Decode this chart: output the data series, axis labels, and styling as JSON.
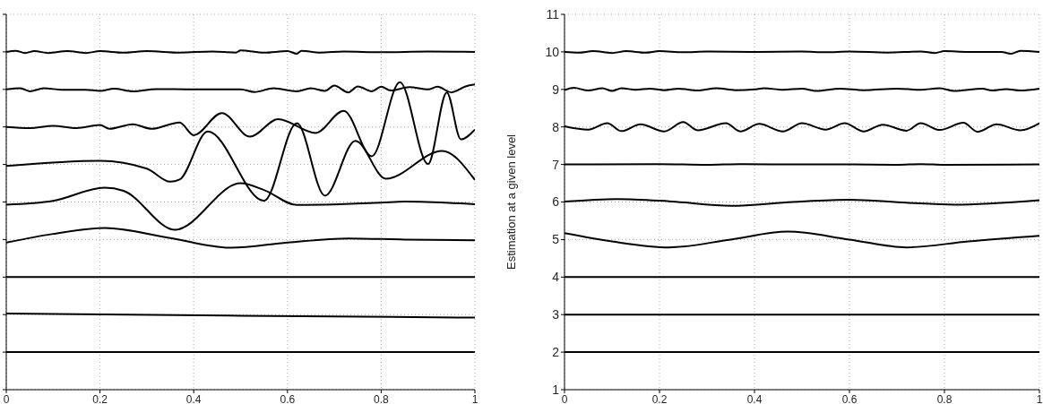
{
  "chart_data": [
    {
      "type": "line",
      "xlim": [
        0,
        1
      ],
      "xticks": [
        0,
        0.2,
        0.4,
        0.6,
        0.8,
        1
      ],
      "ylim": [
        1,
        11
      ],
      "yticks": [
        1,
        2,
        3,
        4,
        5,
        6,
        7,
        8,
        9,
        10,
        11
      ],
      "tick_labels": "x",
      "grid": true,
      "marker": "none",
      "line_style": "solid",
      "series": [
        {
          "color": "#000000",
          "x": [
            0,
            1
          ],
          "values": [
            2,
            2
          ]
        },
        {
          "color": "#000000",
          "x": [
            0,
            0.5,
            1
          ],
          "values": [
            3.03,
            2.97,
            2.92
          ]
        },
        {
          "color": "#000000",
          "x": [
            0,
            1
          ],
          "values": [
            4,
            4
          ]
        },
        {
          "color": "#000000",
          "x": [
            0,
            0.1,
            0.21,
            0.35,
            0.48,
            0.6,
            0.73,
            0.85,
            1
          ],
          "values": [
            4.92,
            5.15,
            5.31,
            5.04,
            4.78,
            4.92,
            5.03,
            5.0,
            4.98
          ]
        },
        {
          "color": "#000000",
          "x": [
            0,
            0.1,
            0.21,
            0.25,
            0.36,
            0.5,
            0.55,
            0.62,
            0.8,
            0.85,
            1
          ],
          "values": [
            5.93,
            6.03,
            6.38,
            6.3,
            5.26,
            6.5,
            6.32,
            5.92,
            5.98,
            6.01,
            5.94
          ]
        },
        {
          "color": "#000000",
          "x": [
            0,
            0.2,
            0.3,
            0.35,
            0.37,
            0.43,
            0.55,
            0.62,
            0.68,
            0.745,
            0.81,
            0.93,
            1
          ],
          "values": [
            6.96,
            7.1,
            6.89,
            6.54,
            6.6,
            7.88,
            6.03,
            8.1,
            6.17,
            7.63,
            6.62,
            7.36,
            6.59
          ]
        },
        {
          "color": "#000000",
          "x": [
            0,
            0.05,
            0.1,
            0.15,
            0.2,
            0.22,
            0.27,
            0.31,
            0.37,
            0.4,
            0.46,
            0.52,
            0.58,
            0.66,
            0.72,
            0.78,
            0.84,
            0.9,
            0.94,
            0.97,
            1
          ],
          "values": [
            8.0,
            7.97,
            8.03,
            7.97,
            8.05,
            7.95,
            8.07,
            7.95,
            8.12,
            7.78,
            8.37,
            7.74,
            8.21,
            7.84,
            8.43,
            7.22,
            9.19,
            7.01,
            8.92,
            7.67,
            7.93
          ]
        },
        {
          "color": "#000000",
          "x": [
            0,
            0.03,
            0.05,
            0.08,
            0.12,
            0.17,
            0.2,
            0.23,
            0.27,
            0.32,
            0.4,
            0.5,
            0.53,
            0.57,
            0.62,
            0.65,
            0.68,
            0.7,
            0.73,
            0.75,
            0.78,
            0.8,
            0.82,
            0.86,
            0.9,
            0.92,
            0.95,
            0.98,
            1
          ],
          "values": [
            9.0,
            9.03,
            8.95,
            9.03,
            8.99,
            8.99,
            8.96,
            9.02,
            8.95,
            9.01,
            9.0,
            9.0,
            8.93,
            9.03,
            8.95,
            9.03,
            8.96,
            9.1,
            8.92,
            9.08,
            8.95,
            9.07,
            8.97,
            9.06,
            9.0,
            9.07,
            8.92,
            9.08,
            9.13
          ]
        },
        {
          "color": "#000000",
          "x": [
            0,
            0.02,
            0.04,
            0.06,
            0.09,
            0.13,
            0.17,
            0.2,
            0.25,
            0.3,
            0.37,
            0.44,
            0.49,
            0.5,
            0.55,
            0.6,
            0.62,
            0.63,
            0.67,
            0.72,
            0.8,
            0.9,
            1
          ],
          "values": [
            10.0,
            10.03,
            9.97,
            10.02,
            9.97,
            10.02,
            9.97,
            10.02,
            9.98,
            10.02,
            9.98,
            10.01,
            9.98,
            10.04,
            9.98,
            10.02,
            9.95,
            10.03,
            9.98,
            10.01,
            9.99,
            10.01,
            10.0
          ]
        }
      ]
    },
    {
      "type": "line",
      "ylabel": "Estimation at a given level",
      "xlim": [
        0,
        1
      ],
      "xticks": [
        0,
        0.2,
        0.4,
        0.6,
        0.8,
        1
      ],
      "ylim": [
        1,
        11
      ],
      "yticks": [
        1,
        2,
        3,
        4,
        5,
        6,
        7,
        8,
        9,
        10,
        11
      ],
      "grid": true,
      "marker": "none",
      "line_style": "solid",
      "series": [
        {
          "color": "#000000",
          "x": [
            0,
            1
          ],
          "values": [
            2,
            2
          ]
        },
        {
          "color": "#000000",
          "x": [
            0,
            1
          ],
          "values": [
            3,
            3
          ]
        },
        {
          "color": "#000000",
          "x": [
            0,
            1
          ],
          "values": [
            4,
            4
          ]
        },
        {
          "color": "#000000",
          "x": [
            0,
            0.1,
            0.22,
            0.35,
            0.47,
            0.6,
            0.72,
            0.85,
            1
          ],
          "values": [
            5.17,
            4.95,
            4.79,
            5.0,
            5.21,
            5.0,
            4.79,
            4.95,
            5.1
          ]
        },
        {
          "color": "#000000",
          "x": [
            0,
            0.11,
            0.22,
            0.35,
            0.48,
            0.6,
            0.72,
            0.82,
            1
          ],
          "values": [
            6.01,
            6.08,
            6.02,
            5.9,
            6.0,
            6.06,
            5.98,
            5.93,
            6.05
          ]
        },
        {
          "color": "#000000",
          "x": [
            0,
            0.2,
            0.3,
            0.37,
            0.5,
            0.6,
            0.7,
            0.75,
            0.8,
            1
          ],
          "values": [
            7.0,
            7.01,
            6.99,
            7.01,
            7.0,
            7.0,
            6.99,
            7.01,
            6.99,
            7.0
          ]
        },
        {
          "color": "#000000",
          "x": [
            0,
            0.05,
            0.09,
            0.12,
            0.16,
            0.21,
            0.25,
            0.28,
            0.34,
            0.37,
            0.41,
            0.46,
            0.5,
            0.55,
            0.59,
            0.63,
            0.67,
            0.72,
            0.75,
            0.79,
            0.84,
            0.87,
            0.91,
            0.96,
            1
          ],
          "values": [
            8.02,
            7.93,
            8.1,
            7.89,
            8.07,
            7.88,
            8.13,
            7.91,
            8.1,
            7.88,
            8.08,
            7.88,
            8.1,
            7.93,
            8.1,
            7.88,
            8.06,
            7.9,
            8.1,
            7.92,
            8.11,
            7.87,
            8.07,
            7.91,
            8.1
          ]
        },
        {
          "color": "#000000",
          "x": [
            0,
            0.02,
            0.05,
            0.08,
            0.1,
            0.12,
            0.15,
            0.18,
            0.21,
            0.24,
            0.28,
            0.32,
            0.36,
            0.4,
            0.42,
            0.46,
            0.5,
            0.53,
            0.58,
            0.63,
            0.7,
            0.75,
            0.79,
            0.82,
            0.88,
            0.9,
            0.93,
            0.96,
            1
          ],
          "values": [
            8.98,
            9.04,
            8.97,
            9.03,
            8.96,
            9.03,
            8.99,
            9.02,
            8.98,
            9.02,
            8.97,
            9.03,
            8.98,
            9.0,
            9.03,
            8.99,
            9.02,
            8.96,
            9.02,
            8.98,
            9.02,
            8.99,
            9.03,
            8.96,
            9.02,
            8.97,
            9.01,
            8.97,
            9.02
          ]
        },
        {
          "color": "#000000",
          "x": [
            0,
            0.03,
            0.06,
            0.1,
            0.13,
            0.17,
            0.2,
            0.25,
            0.3,
            0.4,
            0.5,
            0.55,
            0.6,
            0.68,
            0.75,
            0.78,
            0.8,
            0.85,
            0.92,
            0.94,
            0.96,
            1
          ],
          "values": [
            10.0,
            9.98,
            10.02,
            9.97,
            10.02,
            9.98,
            10.02,
            9.99,
            10.01,
            10.0,
            10.01,
            9.99,
            10.01,
            9.98,
            10.01,
            9.97,
            10.02,
            10.0,
            10.0,
            9.95,
            10.03,
            10.0
          ]
        }
      ]
    }
  ]
}
